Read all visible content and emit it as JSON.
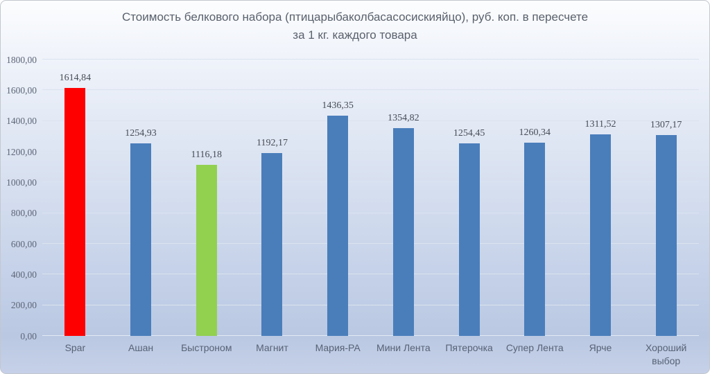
{
  "chart_data": {
    "type": "bar",
    "title": "Стоимость белкового набора (птицарыбаколбасасосискияйцо), руб. коп. в пересчете\nза 1 кг. каждого товара",
    "categories": [
      "Spar",
      "Ашан",
      "Быстроном",
      "Магнит",
      "Мария-РА",
      "Мини Лента",
      "Пятерочка",
      "Супер Лента",
      "Ярче",
      "Хороший выбор"
    ],
    "values": [
      1614.84,
      1254.93,
      1116.18,
      1192.17,
      1436.35,
      1354.82,
      1254.45,
      1260.34,
      1311.52,
      1307.17
    ],
    "data_labels": [
      "1614,84",
      "1254,93",
      "1116,18",
      "1192,17",
      "1436,35",
      "1354,82",
      "1254,45",
      "1260,34",
      "1311,52",
      "1307,17"
    ],
    "bar_colors": [
      "#ff0000",
      "#4a7ebb",
      "#92d050",
      "#4a7ebb",
      "#4a7ebb",
      "#4a7ebb",
      "#4a7ebb",
      "#4a7ebb",
      "#4a7ebb",
      "#4a7ebb"
    ],
    "xlabel": "",
    "ylabel": "",
    "ylim": [
      0,
      1800
    ],
    "ytick_step": 200,
    "ytick_labels": [
      "0,00",
      "200,00",
      "400,00",
      "600,00",
      "800,00",
      "1000,00",
      "1200,00",
      "1400,00",
      "1600,00",
      "1800,00"
    ],
    "grid": true,
    "legend": false,
    "colors": {
      "default_bar": "#4a7ebb",
      "highlight_max": "#ff0000",
      "highlight_min": "#92d050"
    }
  }
}
